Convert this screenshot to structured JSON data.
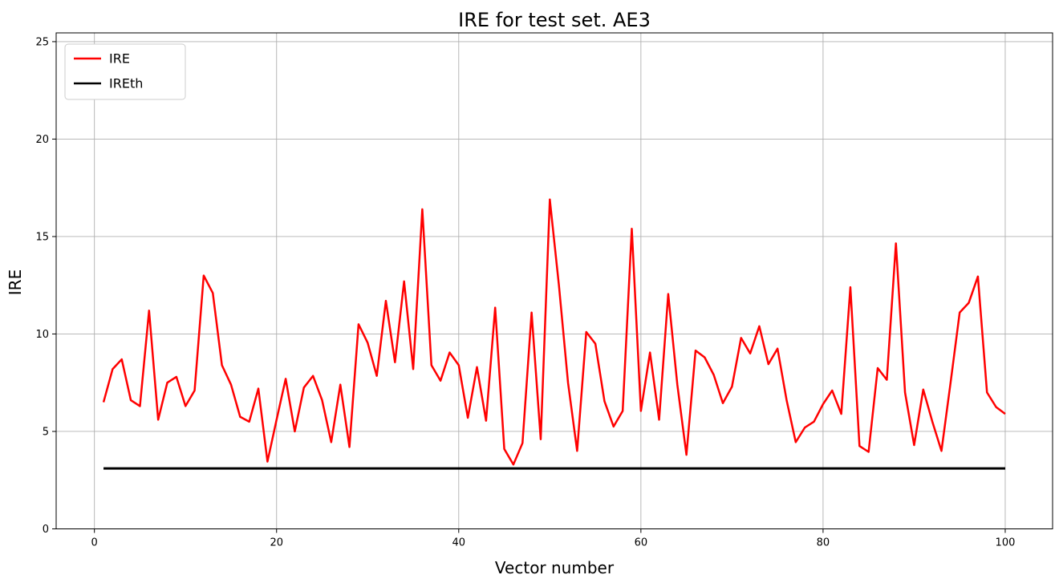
{
  "figure": {
    "title": "IRE for test set. AE3",
    "xlabel": "Vector number",
    "ylabel": "IRE",
    "background": "#ffffff"
  },
  "legend": {
    "entries": [
      {
        "label": "IRE",
        "color": "#ff0000"
      },
      {
        "label": "IREth",
        "color": "#000000"
      }
    ]
  },
  "chart_data": {
    "type": "line",
    "title": "IRE for test set. AE3",
    "xlabel": "Vector number",
    "ylabel": "IRE",
    "xlim": [
      -4.2,
      105.2
    ],
    "ylim": [
      0,
      25.45
    ],
    "xticks": [
      0,
      20,
      40,
      60,
      80,
      100
    ],
    "yticks": [
      0,
      5,
      10,
      15,
      20,
      25
    ],
    "grid": true,
    "grid_color": "#b0b0b0",
    "spine_color": "#000000",
    "legend_position": "upper-left",
    "series": [
      {
        "name": "IRE",
        "color": "#ff0000",
        "line_width": 2.5,
        "x_start": 1,
        "x_step": 1,
        "values": [
          6.5,
          8.2,
          8.7,
          6.6,
          6.3,
          11.2,
          5.6,
          7.5,
          7.8,
          6.3,
          7.1,
          13.0,
          12.1,
          8.4,
          7.4,
          5.75,
          5.5,
          7.2,
          3.45,
          5.6,
          7.7,
          5.0,
          7.25,
          7.85,
          6.6,
          4.45,
          7.4,
          4.2,
          10.5,
          9.55,
          7.85,
          11.7,
          8.55,
          12.7,
          8.2,
          16.4,
          8.4,
          7.6,
          9.05,
          8.4,
          5.7,
          8.3,
          5.55,
          11.35,
          4.1,
          3.3,
          4.4,
          11.1,
          4.6,
          16.9,
          12.5,
          7.5,
          4.0,
          10.1,
          9.5,
          6.55,
          5.25,
          6.05,
          15.4,
          6.05,
          9.05,
          5.6,
          12.05,
          7.4,
          3.8,
          9.15,
          8.8,
          7.9,
          6.45,
          7.3,
          9.8,
          9.0,
          10.4,
          8.45,
          9.25,
          6.6,
          4.45,
          5.2,
          5.5,
          6.4,
          7.1,
          5.9,
          12.4,
          4.25,
          3.95,
          8.25,
          7.65,
          14.65,
          7.0,
          4.3,
          7.15,
          5.5,
          4.0,
          7.5,
          11.1,
          11.6,
          12.95,
          7.0,
          6.25,
          5.9
        ]
      },
      {
        "name": "IREth",
        "color": "#000000",
        "line_width": 3,
        "x_range": [
          1,
          100
        ],
        "constant_value": 3.1
      }
    ]
  }
}
